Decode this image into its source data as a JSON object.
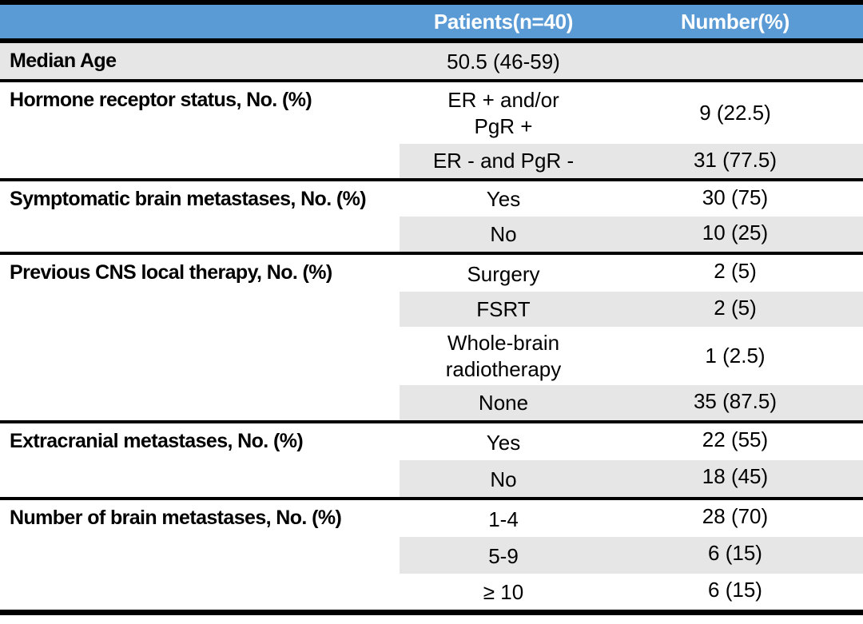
{
  "colors": {
    "header_bg": "#5B9BD5",
    "header_text": "#FFFFFF",
    "band_bg": "#E7E6E6",
    "border": "#000000",
    "text": "#000000"
  },
  "header": {
    "patients": "Patients(n=40)",
    "number": "Number(%)"
  },
  "groups": [
    {
      "label": "Median Age",
      "rows": [
        {
          "patients": "50.5 (46-59)",
          "number": ""
        }
      ]
    },
    {
      "label": "Hormone receptor status, No. (%)",
      "rows": [
        {
          "patients": "ER + and/or\nPgR +",
          "number": "9 (22.5)"
        },
        {
          "patients": "ER - and PgR -",
          "number": "31 (77.5)"
        }
      ]
    },
    {
      "label": "Symptomatic brain metastases, No. (%)",
      "rows": [
        {
          "patients": "Yes",
          "number": "30 (75)"
        },
        {
          "patients": "No",
          "number": "10 (25)"
        }
      ]
    },
    {
      "label": "Previous CNS local therapy, No. (%)",
      "rows": [
        {
          "patients": "Surgery",
          "number": "2 (5)"
        },
        {
          "patients": "FSRT",
          "number": "2 (5)"
        },
        {
          "patients": "Whole-brain\nradiotherapy",
          "number": "1 (2.5)"
        },
        {
          "patients": "None",
          "number": "35 (87.5)"
        }
      ]
    },
    {
      "label": "Extracranial metastases, No. (%)",
      "rows": [
        {
          "patients": "Yes",
          "number": "22 (55)"
        },
        {
          "patients": "No",
          "number": "18 (45)"
        }
      ]
    },
    {
      "label": "Number of brain metastases, No. (%)",
      "rows": [
        {
          "patients": "1-4",
          "number": "28 (70)"
        },
        {
          "patients": "5-9",
          "number": "6 (15)"
        },
        {
          "patients": "≥ 10",
          "number": "6 (15)"
        }
      ]
    }
  ]
}
